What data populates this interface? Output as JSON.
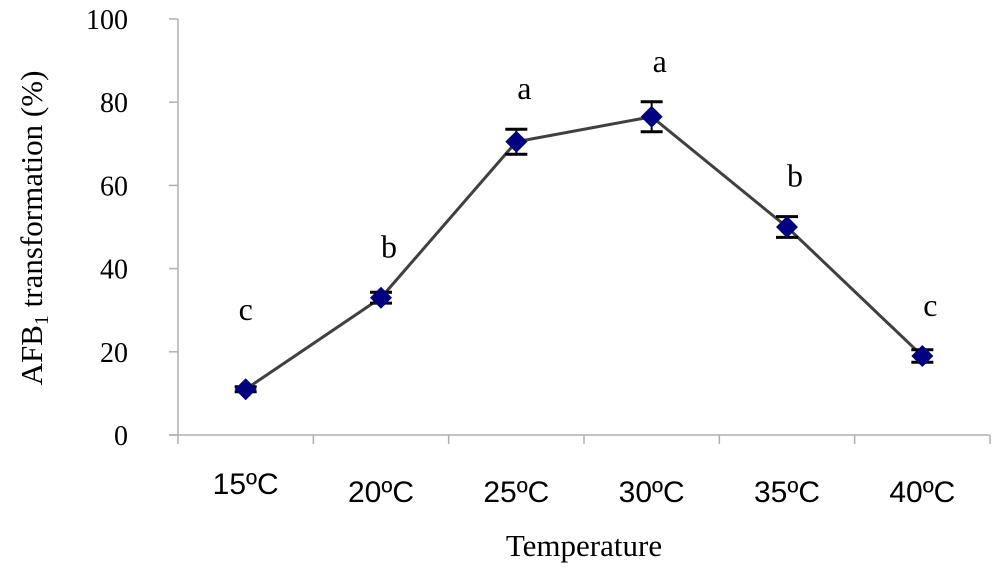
{
  "chart_data": {
    "type": "line",
    "title": "",
    "xlabel": "Temperature",
    "ylabel": "AFB1 transformation (%)",
    "ylabel_parts": {
      "main": "AFB",
      "subscript": "1",
      "rest": " transformation (%)"
    },
    "ylim": [
      0,
      100
    ],
    "yticks": [
      0,
      20,
      40,
      60,
      80,
      100
    ],
    "grid": false,
    "legend": null,
    "categories": [
      "15ºC",
      "20ºC",
      "25ºC",
      "30ºC",
      "35ºC",
      "40ºC"
    ],
    "series": [
      {
        "name": "AFB1 transformation",
        "values": [
          11,
          33,
          70.5,
          76.5,
          50,
          19
        ],
        "errors": [
          0.6,
          1.3,
          3,
          3.6,
          2.5,
          1.5
        ],
        "significance": [
          "c",
          "b",
          "a",
          "a",
          "b",
          "c"
        ],
        "marker": "diamond",
        "marker_color": "#000080",
        "line_color": "#404040"
      }
    ]
  }
}
